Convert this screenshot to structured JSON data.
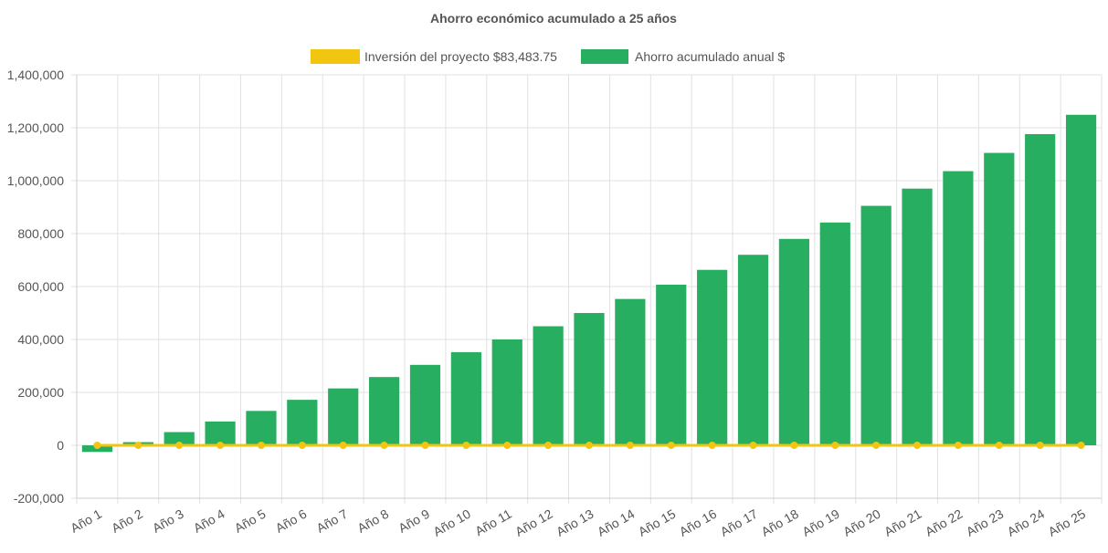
{
  "chart_data": {
    "type": "bar",
    "title": "Ahorro económico acumulado a 25 años",
    "categories": [
      "Año 1",
      "Año 2",
      "Año 3",
      "Año 4",
      "Año 5",
      "Año 6",
      "Año 7",
      "Año 8",
      "Año 9",
      "Año 10",
      "Año 11",
      "Año 12",
      "Año 13",
      "Año 14",
      "Año 15",
      "Año 16",
      "Año 17",
      "Año 18",
      "Año 19",
      "Año 20",
      "Año 21",
      "Año 22",
      "Año 23",
      "Año 24",
      "Año 25"
    ],
    "series": [
      {
        "name": "Inversión del proyecto $83,483.75",
        "type": "line",
        "color": "#f2c511",
        "values": [
          0,
          0,
          0,
          0,
          0,
          0,
          0,
          0,
          0,
          0,
          0,
          0,
          0,
          0,
          0,
          0,
          0,
          0,
          0,
          0,
          0,
          0,
          0,
          0,
          0
        ]
      },
      {
        "name": "Ahorro acumulado anual $",
        "type": "bar",
        "color": "#27ae60",
        "values": [
          -25000,
          12000,
          50000,
          90000,
          130000,
          172000,
          215000,
          258000,
          304000,
          352000,
          400000,
          450000,
          500000,
          553000,
          607000,
          663000,
          720000,
          780000,
          842000,
          905000,
          970000,
          1036000,
          1105000,
          1176000,
          1249000
        ]
      }
    ],
    "ylim": [
      -200000,
      1400000
    ],
    "yticks": [
      "1,400,000",
      "1,200,000",
      "1,000,000",
      "800,000",
      "600,000",
      "400,000",
      "200,000",
      "0",
      "-200,000"
    ],
    "grid": true,
    "legend": "top-center"
  }
}
